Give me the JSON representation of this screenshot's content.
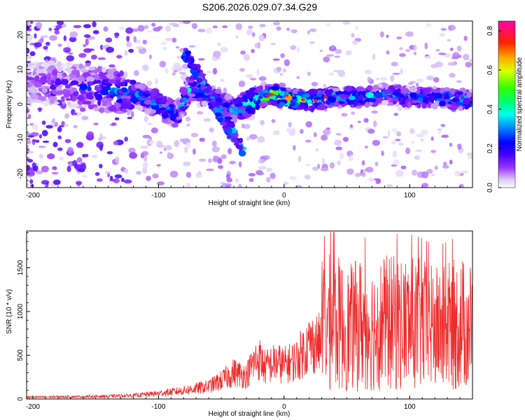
{
  "title": "S206.2026.029.07.34.G29",
  "chart_data": [
    {
      "type": "heatmap",
      "xlabel": "Height of straight line (km)",
      "ylabel": "Frequency (Hz)",
      "xlim": [
        -205,
        150
      ],
      "ylim": [
        -24,
        24
      ],
      "xticks": [
        -200,
        -100,
        0,
        100
      ],
      "xtick_labels": [
        "-200",
        "-100",
        "0",
        "100"
      ],
      "yticks": [
        -20,
        -10,
        0,
        10,
        20
      ],
      "ytick_labels": [
        "-20",
        "-10",
        "0",
        "10",
        "20"
      ],
      "colorbar": {
        "label": "Normalized spectral amplitude",
        "range": [
          0,
          0.85
        ],
        "ticks": [
          0,
          0.2,
          0.4,
          0.6,
          0.8
        ],
        "tick_labels": [
          "0.0",
          "0.2",
          "0.4",
          "0.6",
          "0.8"
        ]
      },
      "ridge": {
        "x": [
          -200,
          -180,
          -160,
          -140,
          -120,
          -100,
          -85,
          -75,
          -60,
          -50,
          -40,
          -30,
          -20,
          -10,
          0,
          20,
          40,
          60,
          80,
          100,
          120,
          150
        ],
        "y": [
          6,
          6,
          5,
          4,
          3,
          0,
          -3,
          5,
          3,
          0,
          -2,
          0,
          2,
          3,
          2,
          1,
          2,
          2,
          3,
          2,
          2,
          1
        ],
        "amplitude": [
          0.12,
          0.15,
          0.2,
          0.25,
          0.3,
          0.3,
          0.3,
          0.35,
          0.35,
          0.3,
          0.3,
          0.35,
          0.5,
          0.65,
          0.6,
          0.45,
          0.35,
          0.35,
          0.3,
          0.3,
          0.3,
          0.35
        ]
      }
    },
    {
      "type": "line",
      "xlabel": "Height of straight line (km)",
      "ylabel": "SNR (10 * v/v)",
      "xlim": [
        -205,
        150
      ],
      "ylim": [
        0,
        1920
      ],
      "xticks": [
        -200,
        -100,
        0,
        100
      ],
      "xtick_labels": [
        "-200",
        "-100",
        "0",
        "100"
      ],
      "yticks": [
        0,
        500,
        1000,
        1500
      ],
      "ytick_labels": [
        "0",
        "500",
        "1000",
        "1500"
      ],
      "series": [
        {
          "name": "SNR",
          "color": "#ee2a2a",
          "envelope_x": [
            -205,
            -180,
            -150,
            -120,
            -100,
            -80,
            -60,
            -50,
            -40,
            -30,
            -25,
            -20,
            -15,
            -10,
            -5,
            0,
            10,
            20,
            30,
            40,
            50,
            60,
            70,
            80,
            90,
            100,
            110,
            120,
            130,
            140,
            150
          ],
          "envelope_y": [
            25,
            30,
            35,
            50,
            80,
            120,
            180,
            260,
            380,
            330,
            500,
            580,
            450,
            500,
            520,
            480,
            560,
            780,
            800,
            850,
            750,
            820,
            780,
            830,
            820,
            820,
            800,
            760,
            780,
            820,
            780
          ]
        }
      ]
    }
  ]
}
